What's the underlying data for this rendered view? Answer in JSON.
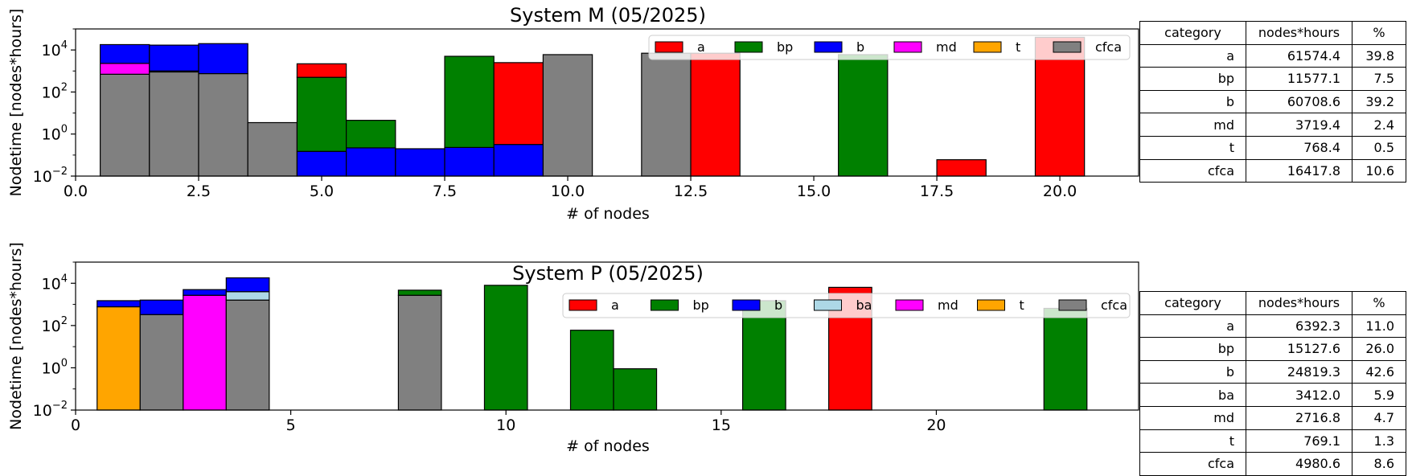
{
  "chart_data": [
    {
      "type": "bar",
      "subtype": "stacked-histogram",
      "title": "System M (05/2025)",
      "xlabel": "# of nodes",
      "ylabel": "Nodetime [nodes*hours]",
      "yscale": "log",
      "xlim": [
        0,
        21.6
      ],
      "ylim_exp": [
        -2,
        5
      ],
      "xticks": [
        0,
        2.5,
        5,
        7.5,
        10,
        12.5,
        15,
        17.5,
        20
      ],
      "xtick_labels": [
        "0.0",
        "2.5",
        "5.0",
        "7.5",
        "10.0",
        "12.5",
        "15.0",
        "17.5",
        "20.0"
      ],
      "yticks_exp": [
        -2,
        0,
        2,
        4
      ],
      "ytick_base": "10",
      "bar_width": 1,
      "legend_position": "top-right",
      "legend": [
        {
          "name": "a",
          "color": "#ff0000"
        },
        {
          "name": "bp",
          "color": "#008000"
        },
        {
          "name": "b",
          "color": "#0000ff"
        },
        {
          "name": "md",
          "color": "#ff00ff"
        },
        {
          "name": "t",
          "color": "#ffa500"
        },
        {
          "name": "cfca",
          "color": "#808080"
        }
      ],
      "bars": [
        {
          "x": 1,
          "layers": [
            {
              "series": "cfca",
              "top": 700
            },
            {
              "series": "md",
              "top": 2300
            },
            {
              "series": "b",
              "top": 18000
            }
          ]
        },
        {
          "x": 2,
          "layers": [
            {
              "series": "cfca",
              "top": 900
            },
            {
              "series": "a",
              "top": 1000
            },
            {
              "series": "b",
              "top": 17000
            }
          ]
        },
        {
          "x": 3,
          "layers": [
            {
              "series": "cfca",
              "top": 750
            },
            {
              "series": "b",
              "top": 20000
            }
          ]
        },
        {
          "x": 4,
          "layers": [
            {
              "series": "cfca",
              "top": 3.5
            }
          ]
        },
        {
          "x": 5,
          "layers": [
            {
              "series": "b",
              "top": 0.15
            },
            {
              "series": "bp",
              "top": 500
            },
            {
              "series": "a",
              "top": 2200
            }
          ]
        },
        {
          "x": 6,
          "layers": [
            {
              "series": "b",
              "top": 0.22
            },
            {
              "series": "bp",
              "top": 4.5
            }
          ]
        },
        {
          "x": 7,
          "layers": [
            {
              "series": "b",
              "top": 0.2
            }
          ]
        },
        {
          "x": 8,
          "layers": [
            {
              "series": "b",
              "top": 0.23
            },
            {
              "series": "bp",
              "top": 5000
            }
          ]
        },
        {
          "x": 9,
          "layers": [
            {
              "series": "b",
              "top": 0.32
            },
            {
              "series": "a",
              "top": 2500
            }
          ]
        },
        {
          "x": 10,
          "layers": [
            {
              "series": "cfca",
              "top": 6000
            }
          ]
        },
        {
          "x": 12,
          "layers": [
            {
              "series": "cfca",
              "top": 7000
            }
          ]
        },
        {
          "x": 13,
          "layers": [
            {
              "series": "a",
              "top": 7000
            }
          ]
        },
        {
          "x": 16,
          "layers": [
            {
              "series": "bp",
              "top": 6000
            }
          ]
        },
        {
          "x": 18,
          "layers": [
            {
              "series": "a",
              "top": 0.06
            }
          ]
        },
        {
          "x": 20,
          "layers": [
            {
              "series": "a",
              "top": 40000
            }
          ]
        }
      ],
      "table": {
        "headers": [
          "category",
          "nodes*hours",
          "%"
        ],
        "rows": [
          [
            "a",
            "61574.4",
            "39.8"
          ],
          [
            "bp",
            "11577.1",
            "7.5"
          ],
          [
            "b",
            "60708.6",
            "39.2"
          ],
          [
            "md",
            "3719.4",
            "2.4"
          ],
          [
            "t",
            "768.4",
            "0.5"
          ],
          [
            "cfca",
            "16417.8",
            "10.6"
          ]
        ]
      }
    },
    {
      "type": "bar",
      "subtype": "stacked-histogram",
      "title": "System P (05/2025)",
      "xlabel": "# of nodes",
      "ylabel": "Nodetime [nodes*hours]",
      "yscale": "log",
      "xlim": [
        0,
        24.7
      ],
      "ylim_exp": [
        -2,
        5
      ],
      "xticks": [
        0,
        5,
        10,
        15,
        20
      ],
      "xtick_labels": [
        "0",
        "5",
        "10",
        "15",
        "20"
      ],
      "yticks_exp": [
        -2,
        0,
        2,
        4
      ],
      "ytick_base": "10",
      "bar_width": 1,
      "legend_position": "top-right",
      "legend": [
        {
          "name": "a",
          "color": "#ff0000"
        },
        {
          "name": "bp",
          "color": "#008000"
        },
        {
          "name": "b",
          "color": "#0000ff"
        },
        {
          "name": "ba",
          "color": "#add8e6"
        },
        {
          "name": "md",
          "color": "#ff00ff"
        },
        {
          "name": "t",
          "color": "#ffa500"
        },
        {
          "name": "cfca",
          "color": "#808080"
        }
      ],
      "bars": [
        {
          "x": 1,
          "layers": [
            {
              "series": "t",
              "top": 770
            },
            {
              "series": "b",
              "top": 1500
            }
          ]
        },
        {
          "x": 2,
          "layers": [
            {
              "series": "cfca",
              "top": 330
            },
            {
              "series": "b",
              "top": 1600
            }
          ]
        },
        {
          "x": 3,
          "layers": [
            {
              "series": "md",
              "top": 2700
            },
            {
              "series": "b",
              "top": 5000
            }
          ]
        },
        {
          "x": 4,
          "layers": [
            {
              "series": "cfca",
              "top": 1600
            },
            {
              "series": "ba",
              "top": 4000
            },
            {
              "series": "b",
              "top": 18000
            }
          ]
        },
        {
          "x": 8,
          "layers": [
            {
              "series": "cfca",
              "top": 2700
            },
            {
              "series": "bp",
              "top": 4700
            }
          ]
        },
        {
          "x": 10,
          "layers": [
            {
              "series": "bp",
              "top": 8000
            }
          ]
        },
        {
          "x": 12,
          "layers": [
            {
              "series": "bp",
              "top": 60
            }
          ]
        },
        {
          "x": 13,
          "layers": [
            {
              "series": "bp",
              "top": 0.9
            }
          ]
        },
        {
          "x": 16,
          "layers": [
            {
              "series": "bp",
              "top": 1500
            }
          ]
        },
        {
          "x": 18,
          "layers": [
            {
              "series": "a",
              "top": 6400
            }
          ]
        },
        {
          "x": 23,
          "layers": [
            {
              "series": "bp",
              "top": 650
            }
          ]
        }
      ],
      "table": {
        "headers": [
          "category",
          "nodes*hours",
          "%"
        ],
        "rows": [
          [
            "a",
            "6392.3",
            "11.0"
          ],
          [
            "bp",
            "15127.6",
            "26.0"
          ],
          [
            "b",
            "24819.3",
            "42.6"
          ],
          [
            "ba",
            "3412.0",
            "5.9"
          ],
          [
            "md",
            "2716.8",
            "4.7"
          ],
          [
            "t",
            "769.1",
            "1.3"
          ],
          [
            "cfca",
            "4980.6",
            "8.6"
          ]
        ]
      }
    }
  ]
}
